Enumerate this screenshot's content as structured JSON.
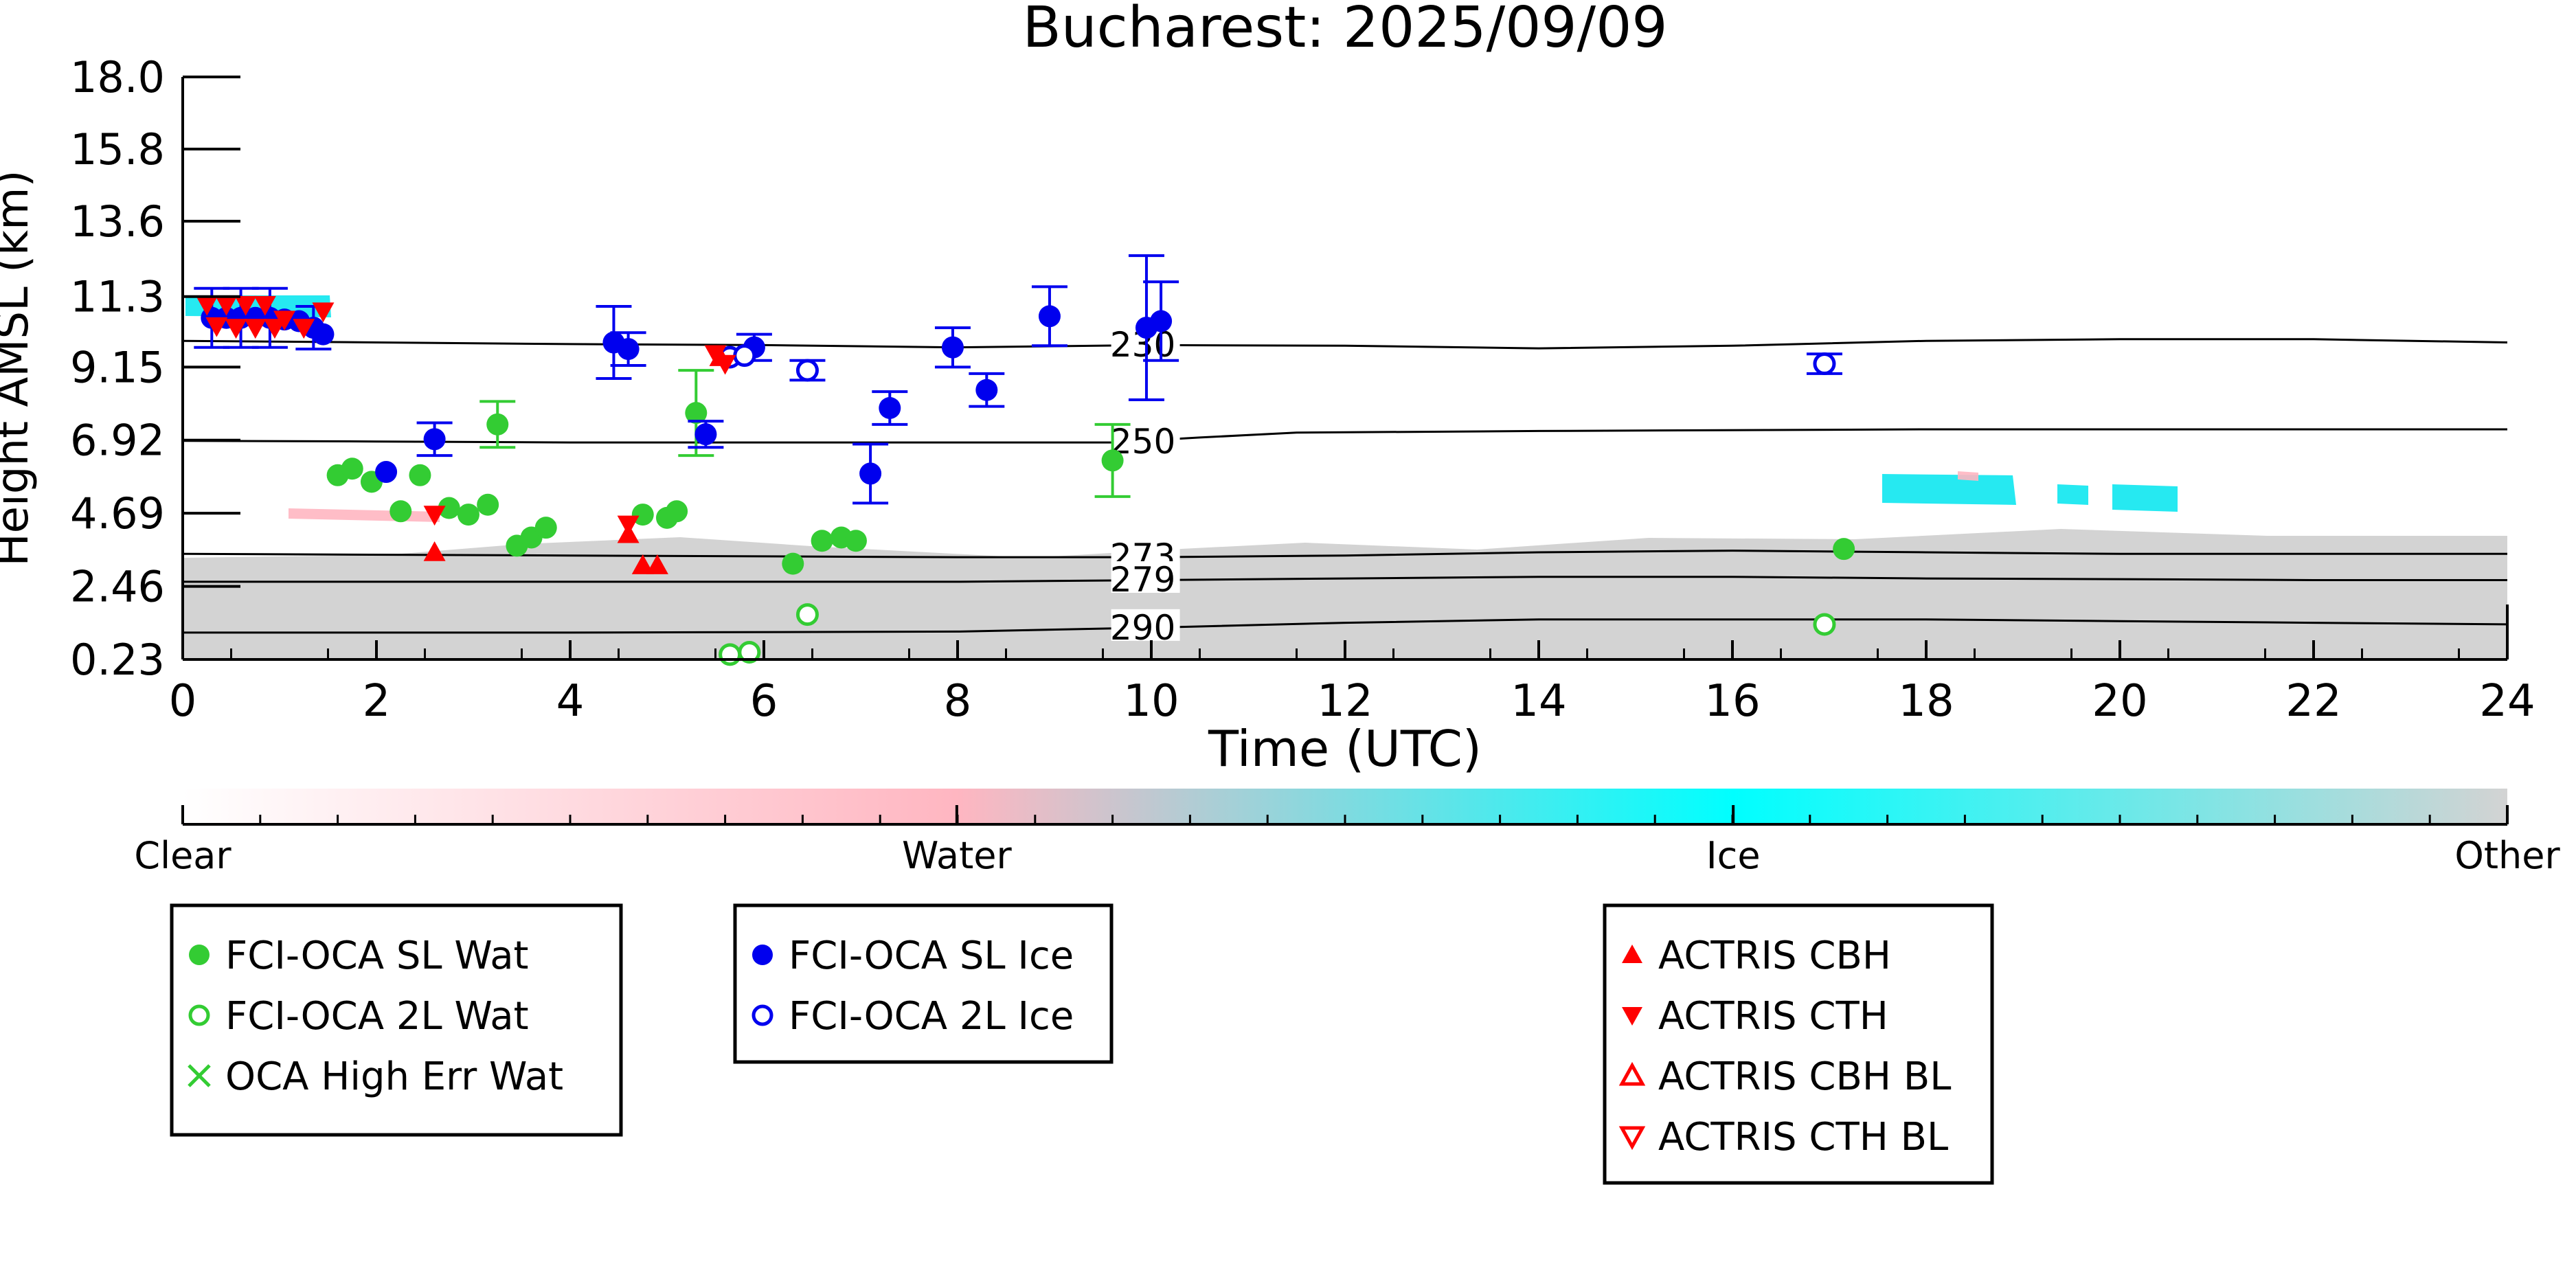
{
  "chart_data": {
    "type": "scatter",
    "title": "Bucharest: 2025/09/09",
    "xlabel": "Time (UTC)",
    "ylabel": "Height AMSL (km)",
    "xlim": [
      0,
      24
    ],
    "ylim": [
      0.23,
      18.0
    ],
    "x_ticks": [
      "0",
      "2",
      "4",
      "6",
      "8",
      "10",
      "12",
      "14",
      "16",
      "18",
      "20",
      "22",
      "24"
    ],
    "x_tick_values": [
      0,
      2,
      4,
      6,
      8,
      10,
      12,
      14,
      16,
      18,
      20,
      22,
      24
    ],
    "y_ticks": [
      "0.23",
      "2.46",
      "4.69",
      "6.92",
      "9.15",
      "11.3",
      "13.6",
      "15.8",
      "18.0"
    ],
    "y_tick_values": [
      0.23,
      2.46,
      4.69,
      6.92,
      9.15,
      11.3,
      13.6,
      15.8,
      18.0
    ],
    "grid": false,
    "colors": {
      "sl_wat": "#33cc33",
      "sl_ice": "#0000ee",
      "actris": "#ff0000",
      "clear": "#ffffff",
      "water": "#ffb6c1",
      "ice": "#00ffff",
      "other": "#d3d3d3"
    },
    "colorbar": {
      "labels": [
        "Clear",
        "Water",
        "Ice",
        "Other"
      ],
      "positions": [
        0,
        0.333,
        0.667,
        1.0
      ]
    },
    "temperature_contours": [
      {
        "label": "230",
        "label_x": 9.6,
        "points": [
          [
            0,
            9.95
          ],
          [
            2,
            9.9
          ],
          [
            4,
            9.85
          ],
          [
            6,
            9.82
          ],
          [
            8,
            9.75
          ],
          [
            10,
            9.82
          ],
          [
            12,
            9.8
          ],
          [
            14,
            9.72
          ],
          [
            16,
            9.8
          ],
          [
            18,
            9.95
          ],
          [
            20,
            10.0
          ],
          [
            22,
            10.0
          ],
          [
            24,
            9.9
          ]
        ]
      },
      {
        "label": "250",
        "label_x": 9.6,
        "points": [
          [
            0,
            6.9
          ],
          [
            2,
            6.88
          ],
          [
            4,
            6.85
          ],
          [
            6,
            6.85
          ],
          [
            8,
            6.85
          ],
          [
            9.6,
            6.85
          ],
          [
            10.5,
            7.0
          ],
          [
            11.5,
            7.15
          ],
          [
            14,
            7.2
          ],
          [
            18,
            7.25
          ],
          [
            22,
            7.25
          ],
          [
            24,
            7.25
          ]
        ]
      },
      {
        "label": "273",
        "label_x": 9.6,
        "points": [
          [
            0,
            3.45
          ],
          [
            4,
            3.4
          ],
          [
            8,
            3.35
          ],
          [
            10,
            3.35
          ],
          [
            12,
            3.4
          ],
          [
            14,
            3.5
          ],
          [
            16,
            3.55
          ],
          [
            18,
            3.5
          ],
          [
            20,
            3.45
          ],
          [
            22,
            3.45
          ],
          [
            24,
            3.45
          ]
        ]
      },
      {
        "label": "279",
        "label_x": 9.6,
        "points": [
          [
            0,
            2.6
          ],
          [
            4,
            2.6
          ],
          [
            8,
            2.6
          ],
          [
            10,
            2.65
          ],
          [
            12,
            2.7
          ],
          [
            14,
            2.75
          ],
          [
            16,
            2.75
          ],
          [
            18,
            2.7
          ],
          [
            20,
            2.68
          ],
          [
            22,
            2.65
          ],
          [
            24,
            2.65
          ]
        ]
      },
      {
        "label": "290",
        "label_x": 9.6,
        "points": [
          [
            0,
            1.05
          ],
          [
            4,
            1.05
          ],
          [
            8,
            1.08
          ],
          [
            10,
            1.2
          ],
          [
            12,
            1.35
          ],
          [
            14,
            1.45
          ],
          [
            16,
            1.45
          ],
          [
            18,
            1.45
          ],
          [
            20,
            1.4
          ],
          [
            22,
            1.35
          ],
          [
            24,
            1.3
          ]
        ]
      }
    ],
    "series": [
      {
        "name": "FCI-OCA SL Wat",
        "marker": "filled-circle",
        "points": [
          [
            1.6,
            5.85,
            0
          ],
          [
            1.75,
            6.05,
            0
          ],
          [
            1.95,
            5.65,
            0
          ],
          [
            2.25,
            4.75,
            0
          ],
          [
            2.45,
            5.85,
            0
          ],
          [
            2.75,
            4.85,
            0
          ],
          [
            2.95,
            4.65,
            0
          ],
          [
            3.15,
            4.95,
            0
          ],
          [
            3.25,
            7.4,
            0.7
          ],
          [
            3.45,
            3.7,
            0
          ],
          [
            3.6,
            3.95,
            0
          ],
          [
            3.75,
            4.25,
            0
          ],
          [
            4.75,
            4.65,
            0
          ],
          [
            5.0,
            4.55,
            0
          ],
          [
            5.1,
            4.75,
            0
          ],
          [
            5.3,
            7.75,
            1.3
          ],
          [
            6.3,
            3.15,
            0
          ],
          [
            6.6,
            3.85,
            0
          ],
          [
            6.8,
            3.95,
            0
          ],
          [
            6.95,
            3.85,
            0
          ],
          [
            9.6,
            6.3,
            1.1
          ],
          [
            17.15,
            3.6,
            0
          ]
        ]
      },
      {
        "name": "FCI-OCA 2L Wat",
        "marker": "open-circle",
        "points": [
          [
            5.65,
            0.38,
            0
          ],
          [
            5.85,
            0.45,
            0
          ],
          [
            6.45,
            1.6,
            0
          ],
          [
            16.95,
            1.3,
            0
          ]
        ]
      },
      {
        "name": "OCA High Err Wat",
        "marker": "x",
        "points": []
      },
      {
        "name": "FCI-OCA SL Ice",
        "marker": "filled-circle",
        "points": [
          [
            0.3,
            10.65,
            0.9
          ],
          [
            0.45,
            10.65,
            0
          ],
          [
            0.6,
            10.65,
            0.9
          ],
          [
            0.75,
            10.65,
            0
          ],
          [
            0.9,
            10.65,
            0.9
          ],
          [
            1.05,
            10.6,
            0
          ],
          [
            1.2,
            10.55,
            0
          ],
          [
            1.35,
            10.35,
            0.65
          ],
          [
            1.45,
            10.15,
            0
          ],
          [
            2.1,
            5.95,
            0
          ],
          [
            2.6,
            6.95,
            0.5
          ],
          [
            4.45,
            9.9,
            1.1
          ],
          [
            4.6,
            9.7,
            0.5
          ],
          [
            5.4,
            7.1,
            0.4
          ],
          [
            5.9,
            9.75,
            0.4
          ],
          [
            7.1,
            5.9,
            0.9
          ],
          [
            7.3,
            7.9,
            0.5
          ],
          [
            7.95,
            9.75,
            0.6
          ],
          [
            8.3,
            8.45,
            0.5
          ],
          [
            8.95,
            10.7,
            0.9
          ],
          [
            9.95,
            10.35,
            2.2
          ],
          [
            10.1,
            10.55,
            1.2
          ]
        ]
      },
      {
        "name": "FCI-OCA 2L Ice",
        "marker": "open-circle",
        "points": [
          [
            5.65,
            9.45,
            0
          ],
          [
            5.8,
            9.5,
            0
          ],
          [
            6.45,
            9.05,
            0.3
          ],
          [
            16.95,
            9.25,
            0.3
          ]
        ]
      },
      {
        "name": "ACTRIS CBH",
        "marker": "triangle-up",
        "points": [
          [
            2.6,
            3.5,
            0
          ],
          [
            4.6,
            4.05,
            0
          ],
          [
            4.75,
            3.1,
            0
          ],
          [
            4.9,
            3.1,
            0
          ],
          [
            5.55,
            9.45,
            0
          ]
        ]
      },
      {
        "name": "ACTRIS CTH",
        "marker": "triangle-down",
        "points": [
          [
            0.25,
            11.05,
            0
          ],
          [
            0.35,
            10.4,
            0
          ],
          [
            0.45,
            11.05,
            0
          ],
          [
            0.55,
            10.35,
            0
          ],
          [
            0.65,
            11.05,
            0
          ],
          [
            0.75,
            10.35,
            0
          ],
          [
            0.85,
            11.05,
            0
          ],
          [
            0.95,
            10.35,
            0
          ],
          [
            1.05,
            10.6,
            0
          ],
          [
            1.25,
            10.35,
            0
          ],
          [
            1.45,
            10.85,
            0
          ],
          [
            2.6,
            4.65,
            0
          ],
          [
            4.6,
            4.35,
            0
          ],
          [
            5.5,
            9.55,
            0
          ],
          [
            5.6,
            9.25,
            0
          ]
        ]
      },
      {
        "name": "ACTRIS CBH BL",
        "marker": "open-triangle-up",
        "points": []
      },
      {
        "name": "ACTRIS CTH BL",
        "marker": "open-triangle-down",
        "points": []
      }
    ],
    "legend": [
      {
        "entries": [
          "FCI-OCA SL Wat",
          "FCI-OCA 2L Wat",
          "OCA High Err Wat"
        ]
      },
      {
        "entries": [
          "FCI-OCA SL Ice",
          "FCI-OCA 2L Ice"
        ]
      },
      {
        "entries": [
          "ACTRIS CBH",
          "ACTRIS CTH",
          "ACTRIS CBH BL",
          "ACTRIS CTH BL"
        ]
      }
    ]
  }
}
